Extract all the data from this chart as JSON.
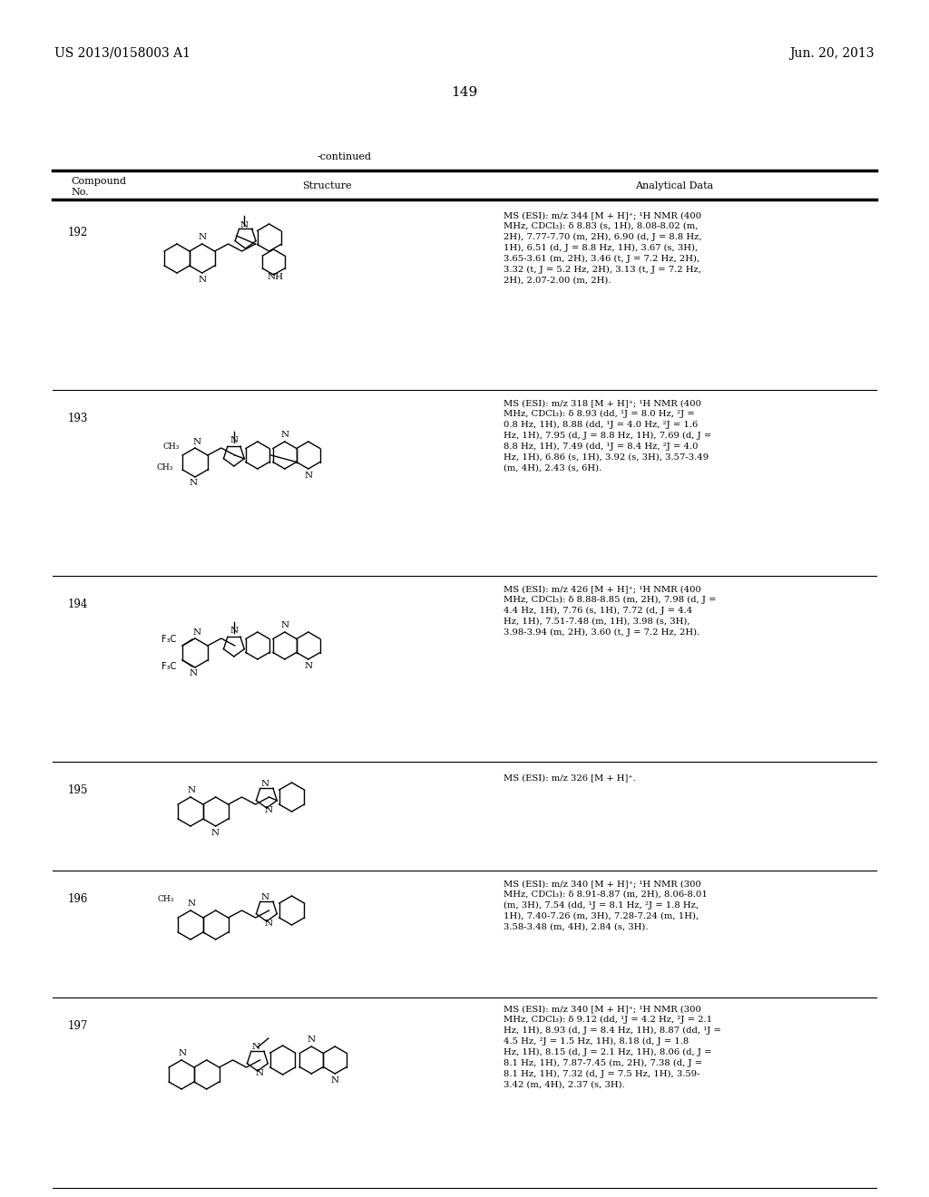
{
  "page_header_left": "US 2013/0158003 A1",
  "page_header_right": "Jun. 20, 2013",
  "page_number": "149",
  "continued_label": "-continued",
  "table_headers": [
    "Compound\nNo.",
    "Structure",
    "Analytical Data"
  ],
  "compounds": [
    {
      "number": "192",
      "analytical": "MS (ESI): m/z 344 [M + H]⁺; ¹H NMR (400\nMHz, CDCl₃): δ 8.83 (s, 1H), 8.08-8.02 (m,\n2H), 7.77-7.70 (m, 2H), 6.90 (d, J = 8.8 Hz,\n1H), 6.51 (d, J = 8.8 Hz, 1H), 3.67 (s, 3H),\n3.65-3.61 (m, 2H), 3.46 (t, J = 7.2 Hz, 2H),\n3.32 (t, J = 5.2 Hz, 2H), 3.13 (t, J = 7.2 Hz,\n2H), 2.07-2.00 (m, 2H)."
    },
    {
      "number": "193",
      "analytical": "MS (ESI): m/z 318 [M + H]⁺; ¹H NMR (400\nMHz, CDCl₃): δ 8.93 (dd, ¹J = 8.0 Hz, ²J =\n0.8 Hz, 1H), 8.88 (dd, ¹J = 4.0 Hz, ²J = 1.6\nHz, 1H), 7.95 (d, J = 8.8 Hz, 1H), 7.69 (d, J =\n8.8 Hz, 1H), 7.49 (dd, ¹J = 8.4 Hz, ²J = 4.0\nHz, 1H), 6.86 (s, 1H), 3.92 (s, 3H), 3.57-3.49\n(m, 4H), 2.43 (s, 6H)."
    },
    {
      "number": "194",
      "analytical": "MS (ESI): m/z 426 [M + H]⁺; ¹H NMR (400\nMHz, CDCl₃): δ 8.88-8.85 (m, 2H), 7.98 (d, J =\n4.4 Hz, 1H), 7.76 (s, 1H), 7.72 (d, J = 4.4\nHz, 1H), 7.51-7.48 (m, 1H), 3.98 (s, 3H),\n3.98-3.94 (m, 2H), 3.60 (t, J = 7.2 Hz, 2H)."
    },
    {
      "number": "195",
      "analytical": "MS (ESI): m/z 326 [M + H]⁺."
    },
    {
      "number": "196",
      "analytical": "MS (ESI): m/z 340 [M + H]⁺; ¹H NMR (300\nMHz, CDCl₃): δ 8.91-8.87 (m, 2H), 8.06-8.01\n(m, 3H), 7.54 (dd, ¹J = 8.1 Hz, ²J = 1.8 Hz,\n1H), 7.40-7.26 (m, 3H), 7.28-7.24 (m, 1H),\n3.58-3.48 (m, 4H), 2.84 (s, 3H)."
    },
    {
      "number": "197",
      "analytical": "MS (ESI): m/z 340 [M + H]⁺; ¹H NMR (300\nMHz, CDCl₃): δ 9.12 (dd, ¹J = 4.2 Hz, ²J = 2.1\nHz, 1H), 8.93 (d, J = 8.4 Hz, 1H), 8.87 (dd, ¹J =\n4.5 Hz, ²J = 1.5 Hz, 1H), 8.18 (d, J = 1.8\nHz, 1H), 8.15 (d, J = 2.1 Hz, 1H), 8.06 (d, J =\n8.1 Hz, 1H), 7.87-7.45 (m, 2H), 7.38 (d, J =\n8.1 Hz, 1H), 7.32 (d, J = 7.5 Hz, 1H), 3.59-\n3.42 (m, 4H), 2.37 (s, 3H)."
    }
  ],
  "bg_color": "#ffffff",
  "text_color": "#000000",
  "line_color": "#000000",
  "font_size_header": 9,
  "font_size_body": 7.5,
  "font_size_page": 10,
  "font_size_title": 10
}
